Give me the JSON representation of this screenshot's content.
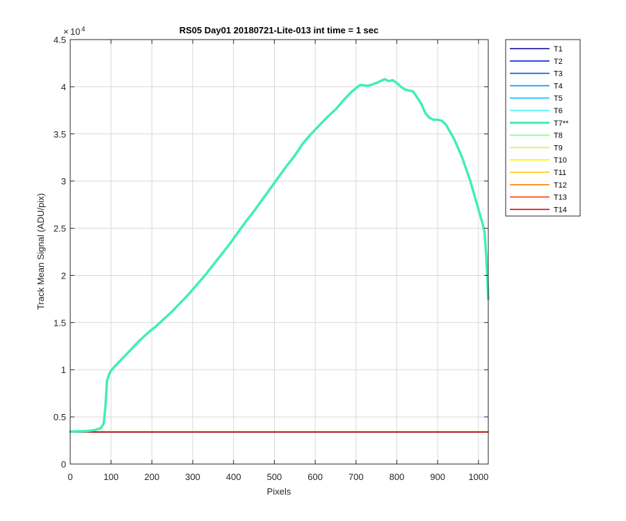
{
  "chart_data": {
    "type": "line",
    "title": "RS05 Day01 20180721-Lite-013 int time = 1 sec",
    "xlabel": "Pixels",
    "ylabel": "Track Mean Signal (ADU/pix)",
    "xlim": [
      0,
      1024
    ],
    "ylim": [
      0,
      45000
    ],
    "xticks": [
      0,
      100,
      200,
      300,
      400,
      500,
      600,
      700,
      800,
      900,
      1000
    ],
    "yticks": [
      0,
      5000,
      10000,
      15000,
      20000,
      25000,
      30000,
      35000,
      40000,
      45000
    ],
    "ytick_labels": [
      "0",
      "0.5",
      "1",
      "1.5",
      "2",
      "2.5",
      "3",
      "3.5",
      "4",
      "4.5"
    ],
    "y_exponent": "10",
    "y_exponent_power": "4",
    "grid": true,
    "legend_position": "outside-right",
    "series": [
      {
        "name": "T1",
        "color": "#00008F",
        "x": [
          0,
          1024
        ],
        "y": [
          3400,
          3400
        ]
      },
      {
        "name": "T2",
        "color": "#0020D9",
        "x": [
          0,
          1024
        ],
        "y": [
          3400,
          3400
        ]
      },
      {
        "name": "T3",
        "color": "#0050FF",
        "x": [
          0,
          1024
        ],
        "y": [
          3400,
          3400
        ]
      },
      {
        "name": "T4",
        "color": "#0090FF",
        "x": [
          0,
          1024
        ],
        "y": [
          3400,
          3400
        ]
      },
      {
        "name": "T5",
        "color": "#10C0FF",
        "x": [
          0,
          1024
        ],
        "y": [
          3400,
          3400
        ]
      },
      {
        "name": "T6",
        "color": "#40F0F0",
        "x": [
          0,
          1024
        ],
        "y": [
          3400,
          3400
        ]
      },
      {
        "name": "T7**",
        "color": "#40F0B0",
        "highlight": true,
        "x": [
          0,
          40,
          60,
          75,
          82,
          86,
          90,
          95,
          100,
          110,
          130,
          150,
          170,
          190,
          210,
          230,
          250,
          270,
          290,
          310,
          330,
          350,
          370,
          390,
          410,
          430,
          450,
          470,
          490,
          510,
          530,
          550,
          570,
          590,
          610,
          630,
          650,
          670,
          690,
          710,
          730,
          750,
          760,
          770,
          780,
          790,
          800,
          810,
          820,
          840,
          860,
          870,
          880,
          890,
          900,
          910,
          920,
          940,
          960,
          980,
          1000,
          1010,
          1015,
          1019,
          1022,
          1024
        ],
        "y": [
          3450,
          3500,
          3600,
          3800,
          4300,
          6000,
          8800,
          9500,
          9900,
          10400,
          11300,
          12200,
          13100,
          13900,
          14600,
          15400,
          16200,
          17100,
          18000,
          19000,
          20000,
          21100,
          22200,
          23300,
          24500,
          25700,
          26800,
          28000,
          29200,
          30400,
          31600,
          32700,
          34000,
          35000,
          35900,
          36800,
          37600,
          38600,
          39500,
          40200,
          40100,
          40400,
          40600,
          40800,
          40600,
          40700,
          40400,
          40000,
          39700,
          39500,
          38200,
          37200,
          36700,
          36500,
          36500,
          36400,
          36000,
          34500,
          32500,
          30000,
          27000,
          25500,
          24500,
          22000,
          19500,
          17500
        ]
      },
      {
        "name": "T8",
        "color": "#80FF80",
        "x": [
          0,
          1024
        ],
        "y": [
          3420,
          3420
        ]
      },
      {
        "name": "T9",
        "color": "#C0FF40",
        "x": [
          0,
          1024
        ],
        "y": [
          3420,
          3420
        ]
      },
      {
        "name": "T10",
        "color": "#FFF000",
        "x": [
          0,
          1024
        ],
        "y": [
          3420,
          3420
        ]
      },
      {
        "name": "T11",
        "color": "#FFC000",
        "x": [
          0,
          1024
        ],
        "y": [
          3410,
          3410
        ]
      },
      {
        "name": "T12",
        "color": "#FF8000",
        "x": [
          0,
          1024
        ],
        "y": [
          3410,
          3410
        ]
      },
      {
        "name": "T13",
        "color": "#FF4000",
        "x": [
          0,
          1024
        ],
        "y": [
          3400,
          3400
        ]
      },
      {
        "name": "T14",
        "color": "#E00000",
        "x": [
          0,
          1024
        ],
        "y": [
          3400,
          3400
        ]
      }
    ]
  }
}
